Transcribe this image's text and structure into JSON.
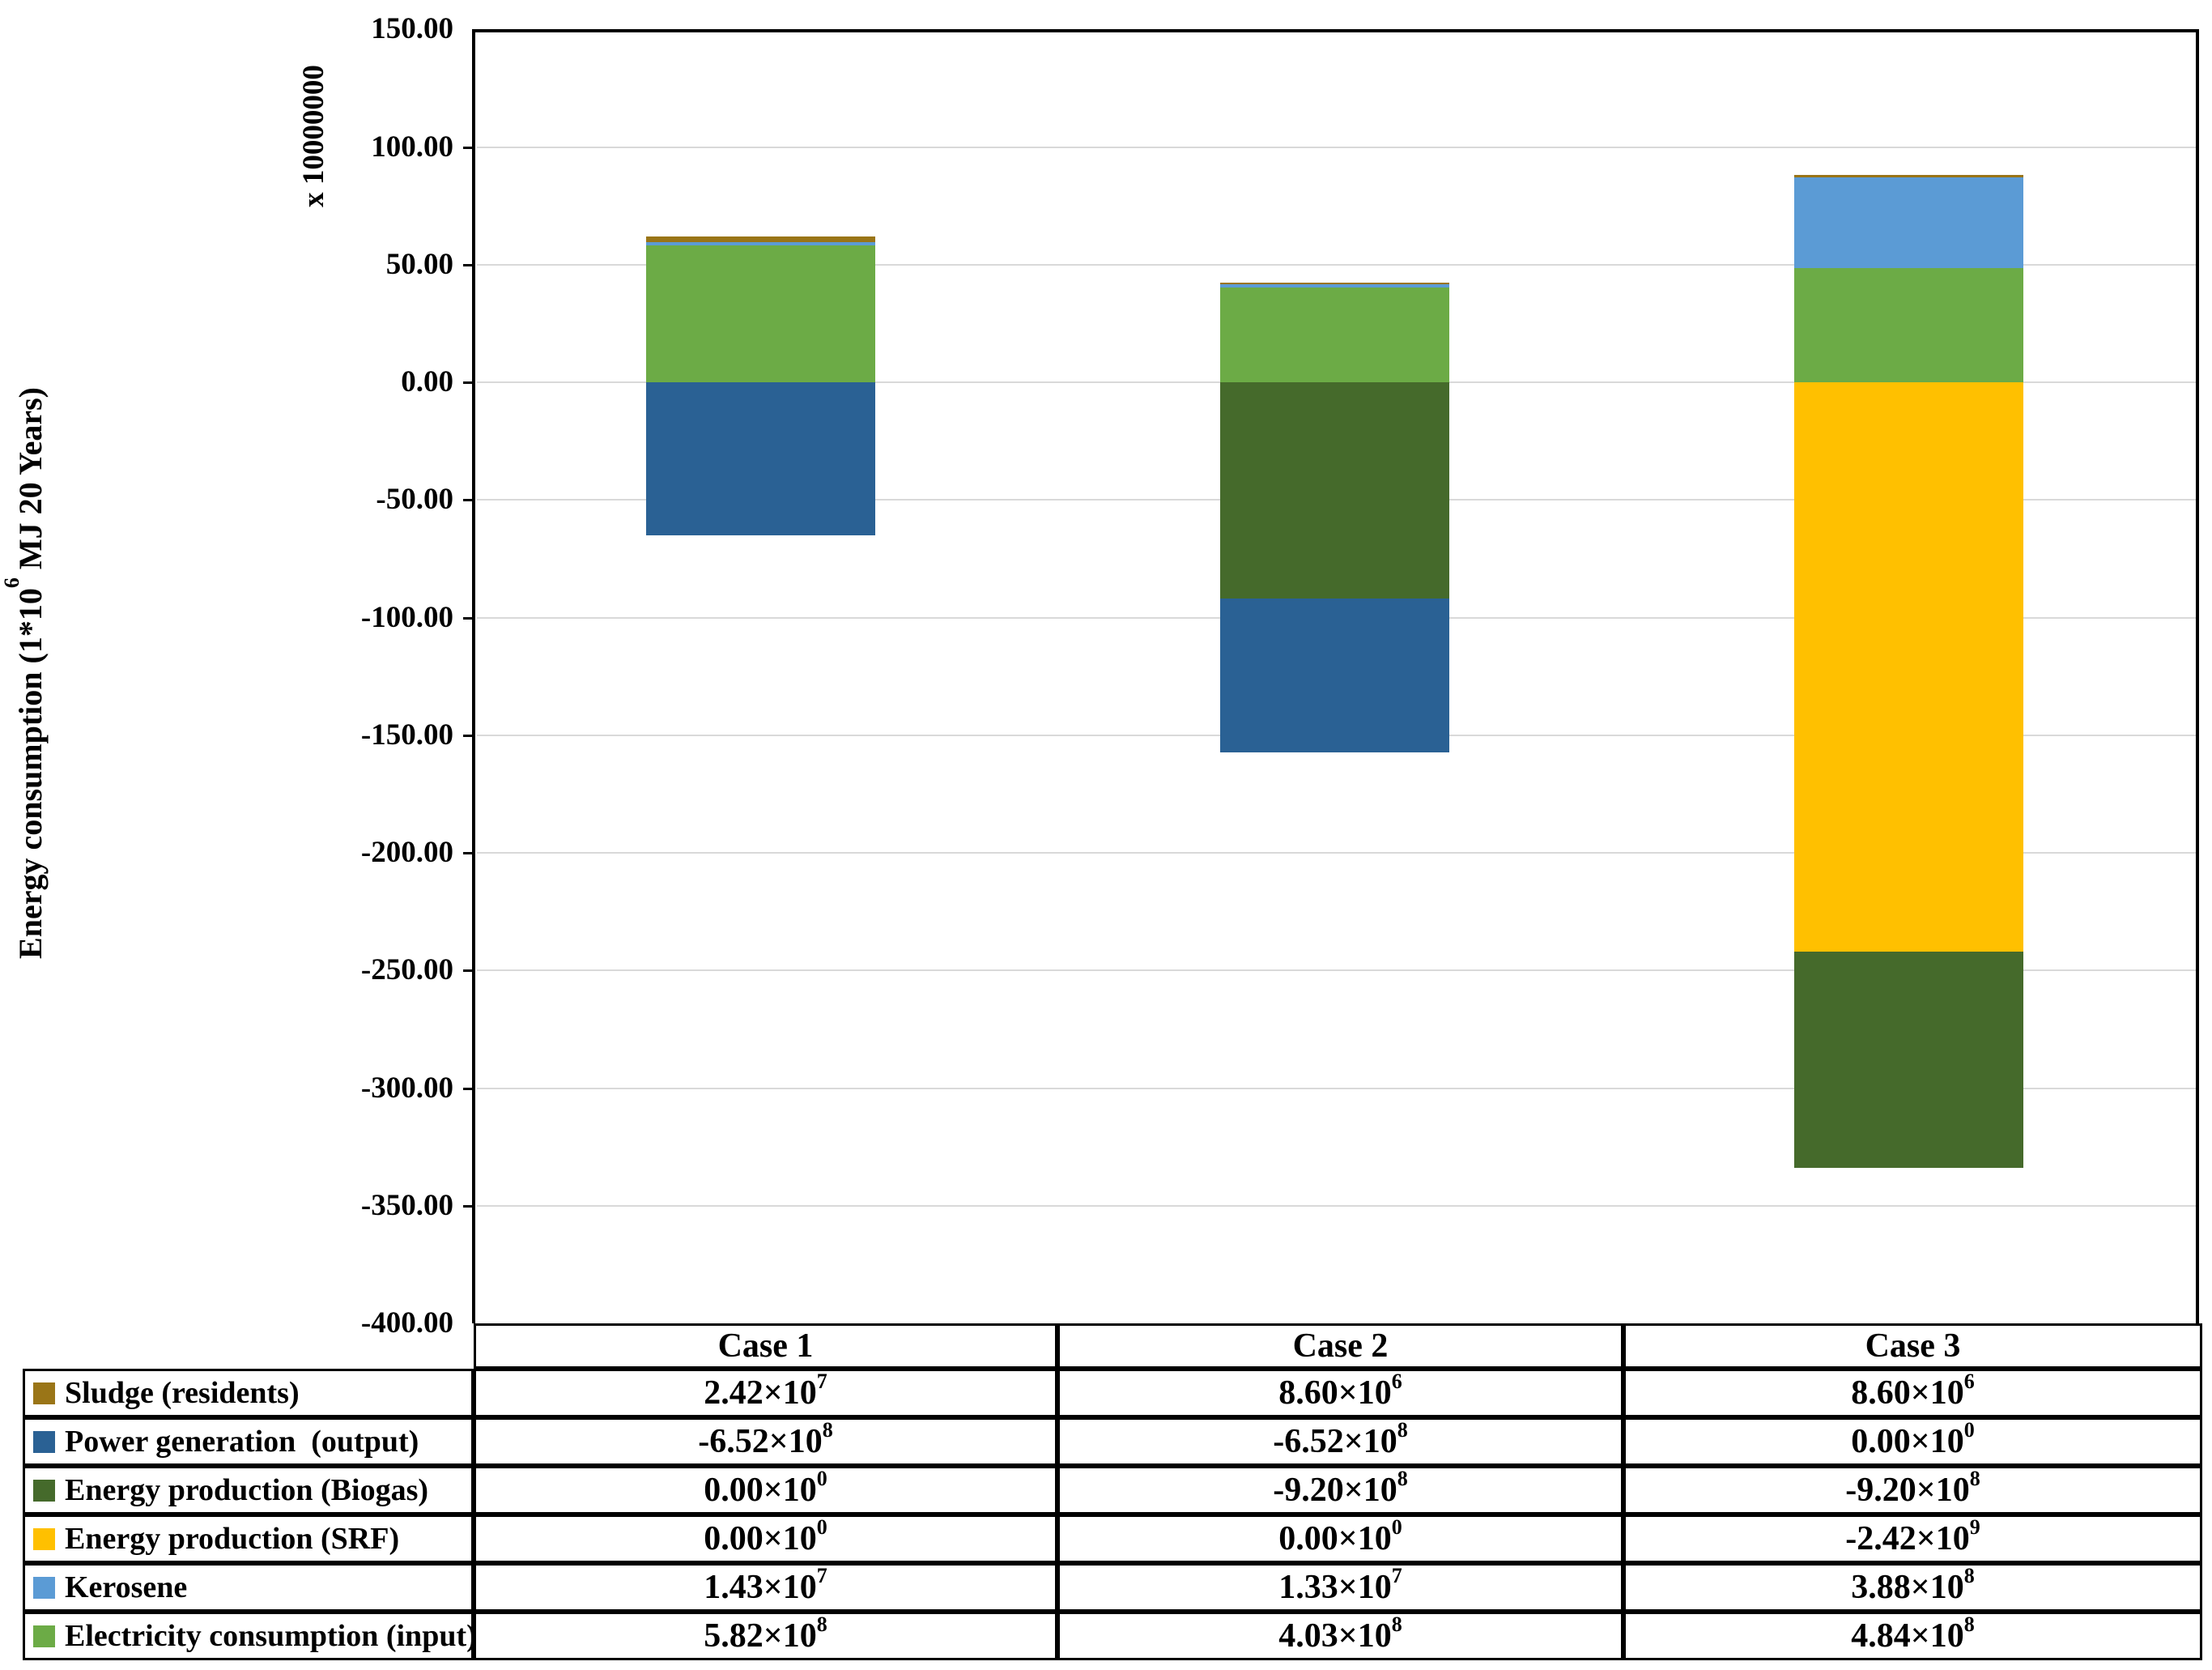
{
  "figure": {
    "y_axis_title_pre": "Energy consumption (1*10",
    "y_axis_title_sup": "6",
    "y_axis_title_post": " MJ 20 Years)",
    "axis_multiplier_label": "x 10000000"
  },
  "chart_data": {
    "type": "bar",
    "stacked": true,
    "categories": [
      "Case 1",
      "Case 2",
      "Case 3"
    ],
    "series": [
      {
        "name": "Sludge (residents)",
        "color": "#9A7517",
        "values": [
          24200000,
          8600000,
          8600000
        ]
      },
      {
        "name": "Power generation  (output)",
        "color": "#2A6194",
        "values": [
          -652000000,
          -652000000,
          0
        ]
      },
      {
        "name": "Energy production (Biogas)",
        "color": "#456A2B",
        "values": [
          0,
          -920000000,
          -920000000
        ]
      },
      {
        "name": "Energy production (SRF)",
        "color": "#FFC000",
        "values": [
          0,
          0,
          -2420000000
        ]
      },
      {
        "name": "Kerosene",
        "color": "#5B9BD5",
        "values": [
          14300000,
          13300000,
          388000000
        ]
      },
      {
        "name": "Electricity consumption (input)",
        "color": "#6CAB46",
        "values": [
          582000000,
          403000000,
          484000000
        ]
      }
    ],
    "stack_order": "reversed-series-order",
    "title": "",
    "xlabel": "",
    "ylabel": "Energy consumption (1*10^6 MJ 20 Years)",
    "unit_multiplier": 10000000,
    "ylim": [
      -400,
      150
    ],
    "grid": true,
    "legend_position": "table-left",
    "y_ticks": [
      {
        "label": "150.00",
        "value": 150
      },
      {
        "label": "100.00",
        "value": 100
      },
      {
        "label": "50.00",
        "value": 50
      },
      {
        "label": "0.00",
        "value": 0
      },
      {
        "label": "-50.00",
        "value": -50
      },
      {
        "label": "-100.00",
        "value": -100
      },
      {
        "label": "-150.00",
        "value": -150
      },
      {
        "label": "-200.00",
        "value": -200
      },
      {
        "label": "-250.00",
        "value": -250
      },
      {
        "label": "-300.00",
        "value": -300
      },
      {
        "label": "-350.00",
        "value": -350
      },
      {
        "label": "-400.00",
        "value": -400
      }
    ]
  },
  "table": {
    "header": [
      "Case 1",
      "Case 2",
      "Case 3"
    ],
    "rows": [
      {
        "label": "Sludge (residents)",
        "color": "#9A7517",
        "values": [
          {
            "m": "2.42×10",
            "e": "7"
          },
          {
            "m": "8.60×10",
            "e": "6"
          },
          {
            "m": "8.60×10",
            "e": "6"
          }
        ]
      },
      {
        "label": "Power generation  (output)",
        "color": "#2A6194",
        "values": [
          {
            "m": "-6.52×10",
            "e": "8"
          },
          {
            "m": "-6.52×10",
            "e": "8"
          },
          {
            "m": "0.00×10",
            "e": "0"
          }
        ]
      },
      {
        "label": "Energy production (Biogas)",
        "color": "#456A2B",
        "values": [
          {
            "m": "0.00×10",
            "e": "0"
          },
          {
            "m": "-9.20×10",
            "e": "8"
          },
          {
            "m": "-9.20×10",
            "e": "8"
          }
        ]
      },
      {
        "label": "Energy production (SRF)",
        "color": "#FFC000",
        "values": [
          {
            "m": "0.00×10",
            "e": "0"
          },
          {
            "m": "0.00×10",
            "e": "0"
          },
          {
            "m": "-2.42×10",
            "e": "9"
          }
        ]
      },
      {
        "label": "Kerosene",
        "color": "#5B9BD5",
        "values": [
          {
            "m": "1.43×10",
            "e": "7"
          },
          {
            "m": "1.33×10",
            "e": "7"
          },
          {
            "m": "3.88×10",
            "e": "8"
          }
        ]
      },
      {
        "label": "Electricity consumption (input)",
        "color": "#6CAB46",
        "values": [
          {
            "m": "5.82×10",
            "e": "8"
          },
          {
            "m": "4.03×10",
            "e": "8"
          },
          {
            "m": "4.84×10",
            "e": "8"
          }
        ]
      }
    ]
  }
}
